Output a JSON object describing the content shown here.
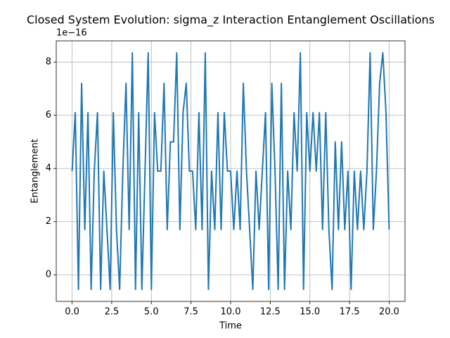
{
  "chart_data": {
    "type": "line",
    "title": "Closed System Evolution: sigma_z Interaction Entanglement Oscillations",
    "xlabel": "Time",
    "ylabel": "Entanglement",
    "offset_text": "1e−16",
    "color": "#1f77b4",
    "grid": true,
    "xlim": [
      -1,
      21
    ],
    "ylim": [
      -1.0,
      8.8
    ],
    "xticks": [
      {
        "value": 0,
        "label": "0.0"
      },
      {
        "value": 2.5,
        "label": "2.5"
      },
      {
        "value": 5,
        "label": "5.0"
      },
      {
        "value": 7.5,
        "label": "7.5"
      },
      {
        "value": 10,
        "label": "10.0"
      },
      {
        "value": 12.5,
        "label": "12.5"
      },
      {
        "value": 15,
        "label": "15.0"
      },
      {
        "value": 17.5,
        "label": "17.5"
      },
      {
        "value": 20,
        "label": "20.0"
      }
    ],
    "yticks": [
      0,
      2,
      4,
      6,
      8
    ],
    "x": [
      0,
      0.2,
      0.4,
      0.6,
      0.8,
      1,
      1.2,
      1.4,
      1.6,
      1.8,
      2,
      2.2,
      2.4,
      2.6,
      2.8,
      3,
      3.2,
      3.4,
      3.6,
      3.8,
      4,
      4.2,
      4.4,
      4.6,
      4.8,
      5,
      5.2,
      5.4,
      5.6,
      5.8,
      6,
      6.2,
      6.4,
      6.6,
      6.8,
      7,
      7.2,
      7.4,
      7.6,
      7.8,
      8,
      8.2,
      8.4,
      8.6,
      8.8,
      9,
      9.2,
      9.4,
      9.6,
      9.8,
      10,
      10.2,
      10.4,
      10.6,
      10.8,
      11,
      11.2,
      11.4,
      11.6,
      11.8,
      12,
      12.2,
      12.4,
      12.6,
      12.8,
      13,
      13.2,
      13.4,
      13.6,
      13.8,
      14,
      14.2,
      14.4,
      14.6,
      14.8,
      15,
      15.2,
      15.4,
      15.6,
      15.8,
      16,
      16.2,
      16.4,
      16.6,
      16.8,
      17,
      17.2,
      17.4,
      17.6,
      17.8,
      18,
      18.2,
      18.4,
      18.6,
      18.8,
      19,
      19.2,
      19.4,
      19.6,
      19.8,
      20
    ],
    "values": [
      3.9,
      6.1,
      -0.55,
      7.2,
      1.7,
      6.1,
      -0.55,
      3.9,
      6.1,
      -0.55,
      3.9,
      1.7,
      -0.55,
      6.1,
      1.7,
      -0.55,
      3.9,
      7.2,
      1.7,
      8.35,
      -0.55,
      6.1,
      -0.55,
      3.9,
      8.35,
      -0.55,
      6.1,
      3.9,
      3.9,
      7.2,
      1.7,
      5.0,
      5.0,
      8.35,
      1.7,
      6.1,
      7.2,
      3.9,
      3.9,
      1.7,
      6.1,
      1.7,
      8.35,
      -0.55,
      3.9,
      1.7,
      6.1,
      1.7,
      6.1,
      3.9,
      3.9,
      1.7,
      3.9,
      1.7,
      7.2,
      3.9,
      1.7,
      -0.55,
      3.9,
      1.7,
      3.9,
      6.1,
      -0.55,
      7.2,
      3.9,
      -0.55,
      7.2,
      -0.55,
      3.9,
      1.7,
      6.1,
      3.9,
      8.35,
      -0.55,
      6.1,
      3.9,
      6.1,
      3.9,
      6.1,
      1.7,
      6.1,
      1.7,
      -0.55,
      5.0,
      1.7,
      5.0,
      1.7,
      3.9,
      -0.55,
      3.9,
      1.7,
      3.9,
      1.7,
      3.9,
      8.35,
      1.7,
      3.9,
      7.2,
      8.35,
      6.1,
      1.7
    ]
  }
}
